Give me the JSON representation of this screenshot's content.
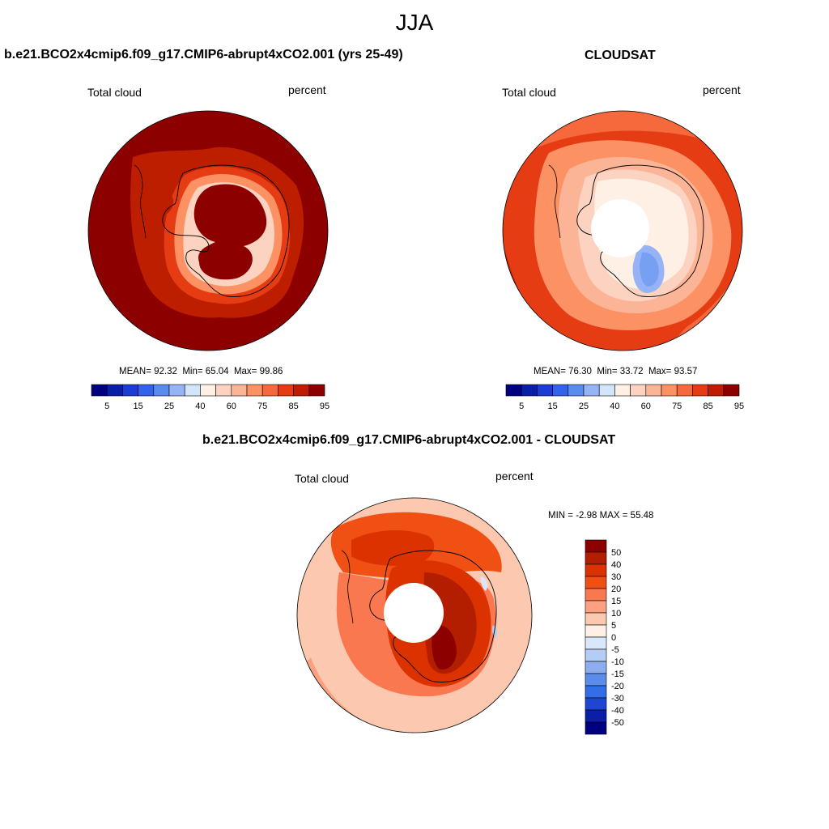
{
  "title": "JJA",
  "panels": [
    {
      "title": "b.e21.BCO2x4cmip6.f09_g17.CMIP6-abrupt4xCO2.001 (yrs 25-49)",
      "left_label": "Total cloud",
      "right_label": "percent",
      "stats": {
        "mean_label": "MEAN=",
        "mean": "92.32",
        "min_label": "Min=",
        "min": "65.04",
        "max_label": "Max=",
        "max": "99.86"
      }
    },
    {
      "title": "CLOUDSAT",
      "left_label": "Total cloud",
      "right_label": "percent",
      "stats": {
        "mean_label": "MEAN=",
        "mean": "76.30",
        "min_label": "Min=",
        "min": "33.72",
        "max_label": "Max=",
        "max": "93.57"
      }
    },
    {
      "title": "b.e21.BCO2x4cmip6.f09_g17.CMIP6-abrupt4xCO2.001 - CLOUDSAT",
      "left_label": "Total cloud",
      "right_label": "percent",
      "stats": {
        "min_label": "MIN =",
        "min": "-2.98",
        "max_label": "MAX =",
        "max": "55.48"
      }
    }
  ],
  "colorbar_abs": {
    "colors": [
      "#000080",
      "#0a1ea8",
      "#1e3cd2",
      "#3263ea",
      "#5a8cf0",
      "#96b4f5",
      "#d2e6fa",
      "#fff0e6",
      "#fcd2c0",
      "#fcb496",
      "#fc9164",
      "#f5693c",
      "#e63c14",
      "#be1e00",
      "#8c0000"
    ],
    "labels": [
      "5",
      "15",
      "25",
      "40",
      "60",
      "75",
      "85",
      "95"
    ]
  },
  "colorbar_diff": {
    "colors_top_to_bottom": [
      "#8c0000",
      "#b41e00",
      "#dc3200",
      "#f05014",
      "#fa7850",
      "#fca080",
      "#fcc8b0",
      "#fff0e6",
      "#d8e8fa",
      "#b4cdf5",
      "#8cadf0",
      "#5a8ceb",
      "#326ee6",
      "#1e46d2",
      "#0a1ea8",
      "#000080"
    ],
    "labels_top_to_bottom": [
      "50",
      "40",
      "30",
      "20",
      "15",
      "10",
      "5",
      "0",
      "-5",
      "-10",
      "-15",
      "-20",
      "-30",
      "-40",
      "-50"
    ]
  }
}
